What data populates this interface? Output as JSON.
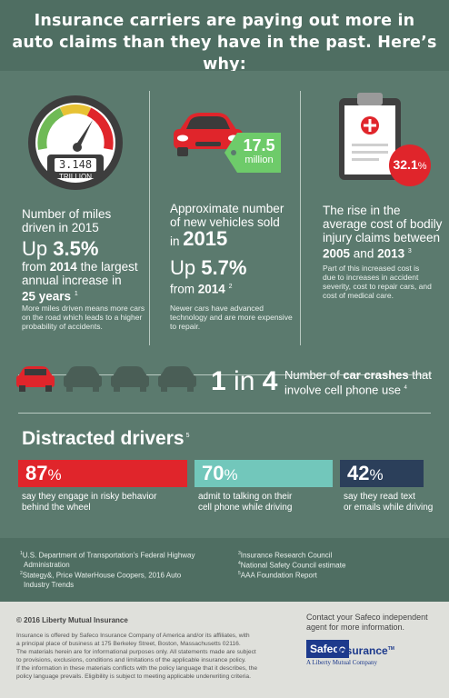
{
  "header": {
    "line1": "Insurance carriers are paying out more in",
    "line2": "auto claims than they have in the past. Here’s why:"
  },
  "miles": {
    "gauge_value": "3.148",
    "gauge_unit": "TRILLION",
    "label_line1": "Number of miles",
    "label_line2": "driven in 2015",
    "up_word": "Up ",
    "up_value": "3.5%",
    "from_prefix": "from ",
    "from_year": "2014",
    "from_suffix": " the largest",
    "line_b": "annual increase in",
    "years_value": "25 years",
    "footnote_ref": "1",
    "note_line1": "More miles driven means more cars",
    "note_line2": "on the road which leads to a higher",
    "note_line3": "probability of accidents."
  },
  "vehicles": {
    "tag_value": "17.5",
    "tag_unit": "million",
    "label_line1": "Approximate number",
    "label_line2": "of new vehicles sold",
    "label_line3_pre": "in ",
    "label_year": "2015",
    "up_word": "Up ",
    "up_value": "5.7%",
    "from_prefix": "from ",
    "from_year": "2014",
    "footnote_ref": "2",
    "note_line1": "Newer cars have advanced",
    "note_line2": "technology and are more expensive",
    "note_line3": "to repair."
  },
  "injury": {
    "badge_value": "32.1",
    "badge_unit": "%",
    "label_line1": "The rise in the",
    "label_line2": "average cost of bodily",
    "label_line3": "injury claims between",
    "years_a": "2005",
    "years_and": " and ",
    "years_b": "2013",
    "footnote_ref": "3",
    "note_line1": "Part of this increased cost is",
    "note_line2": "due to increases in accident",
    "note_line3": "severity, cost to repair cars, and",
    "note_line4": "cost of medical care."
  },
  "crashes": {
    "one": "1",
    "in": " in ",
    "four": "4",
    "text_pre": "Number of ",
    "text_bold": "car crashes",
    "text_post": " that",
    "text_line2": "involve cell phone use",
    "footnote_ref": "4"
  },
  "distracted": {
    "title": "Distracted drivers",
    "footnote_ref": "5",
    "bars": [
      {
        "value": "87",
        "unit": "%",
        "cap1": "say they engage in risky behavior",
        "cap2": "behind the wheel"
      },
      {
        "value": "70",
        "unit": "%",
        "cap1": "admit to talking on their",
        "cap2": "cell phone while driving"
      },
      {
        "value": "42",
        "unit": "%",
        "cap1": "say they read text",
        "cap2": "or emails while driving"
      }
    ]
  },
  "footnotes": {
    "n1_num": "1",
    "n1_line1": "U.S. Department of Transportation’s Federal Highway",
    "n1_line2": "Administration",
    "n2_num": "2",
    "n2_line1": "Stategy&, Price WaterHouse Coopers, 2016 Auto",
    "n2_line2": "Industry Trends",
    "n3_num": "3",
    "n3": "Insurance Research Council",
    "n4_num": "4",
    "n4": "National Safety Council estimate",
    "n5_num": "5",
    "n5": "AAA Foundation Report"
  },
  "footer": {
    "copyright": "© 2016 Liberty Mutual Insurance",
    "legal1": "Insurance is offered by Safeco Insurance Company of America and/or its affiliates, with",
    "legal2": "a principal place of business at 175 Berkeley Street, Boston, Massachusetts 02116.",
    "legal3": "The materials herein are for informational purposes only. All statements made are subject",
    "legal4": "to provisions, exclusions, conditions and limitations of the applicable insurance policy.",
    "legal5": "If the information in these materials conflicts with the policy language that it describes, the",
    "legal6": "policy language prevails. Eligibility is subject to meeting applicable underwriting criteria.",
    "contact1": "Contact your Safeco independent",
    "contact2": "agent for more information.",
    "brand_box": "Safeco",
    "brand_tail": " Insurance",
    "brand_tm": "TM",
    "brand_sub": "A Liberty Mutual Company"
  },
  "colors": {
    "background": "#5b7a6e",
    "header_band": "#4f6e62",
    "red": "#e0252b",
    "teal": "#72c7bb",
    "navy": "#2b3f5a",
    "brand_blue": "#1d3a8c"
  }
}
